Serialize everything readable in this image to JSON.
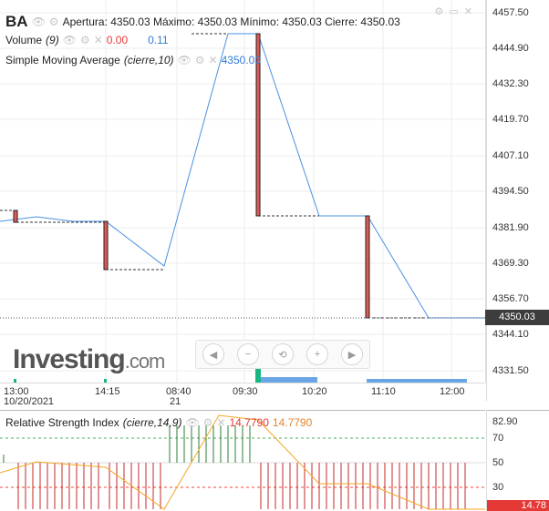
{
  "legend": {
    "symbol": "BA",
    "ohlc_text": "Apertura: 4350.03 Máximo: 4350.03 Mínimo: 4350.03 Cierre: 4350.03",
    "volume_label": "Volume",
    "volume_param": "(9)",
    "volume_value_1": "0.00",
    "volume_value_2": "0.11",
    "sma_label": "Simple Moving Average",
    "sma_param": "(cierre,10)",
    "sma_value": "4350.03"
  },
  "price_axis": {
    "ticks": [
      "4457.50",
      "4444.90",
      "4432.30",
      "4419.70",
      "4407.10",
      "4394.50",
      "4381.90",
      "4369.30",
      "4356.70",
      "4344.10",
      "4331.50"
    ],
    "current_price": "4350.03"
  },
  "time_axis": {
    "labels": [
      "13:00",
      "14:15",
      "08:40",
      "09:30",
      "10:20",
      "11:10",
      "12:00"
    ],
    "sub_labels": [
      "10/20/2021",
      "21"
    ]
  },
  "rsi": {
    "label": "Relative Strength Index",
    "param": "(cierre,14,9)",
    "value_1": "14.7790",
    "value_2": "14.7790",
    "axis_ticks": [
      "82.90",
      "70",
      "50",
      "30"
    ],
    "current_value": "14.78"
  },
  "watermark": {
    "brand": "Investing",
    "suffix": ".com"
  },
  "colors": {
    "candle": "#e53935",
    "sma_line": "#4a90e2",
    "rsi_line": "#f5a623",
    "rsi_bar_up": "#2e7d32",
    "rsi_bar_down": "#c62828",
    "level_70": "#4caf50",
    "level_30": "#f44336"
  },
  "icons": [
    "eye-icon",
    "gear-icon",
    "close-icon"
  ],
  "nav_controls": [
    "scroll-left-icon",
    "zoom-out-icon",
    "reset-zoom-icon",
    "zoom-in-icon",
    "scroll-right-icon"
  ]
}
